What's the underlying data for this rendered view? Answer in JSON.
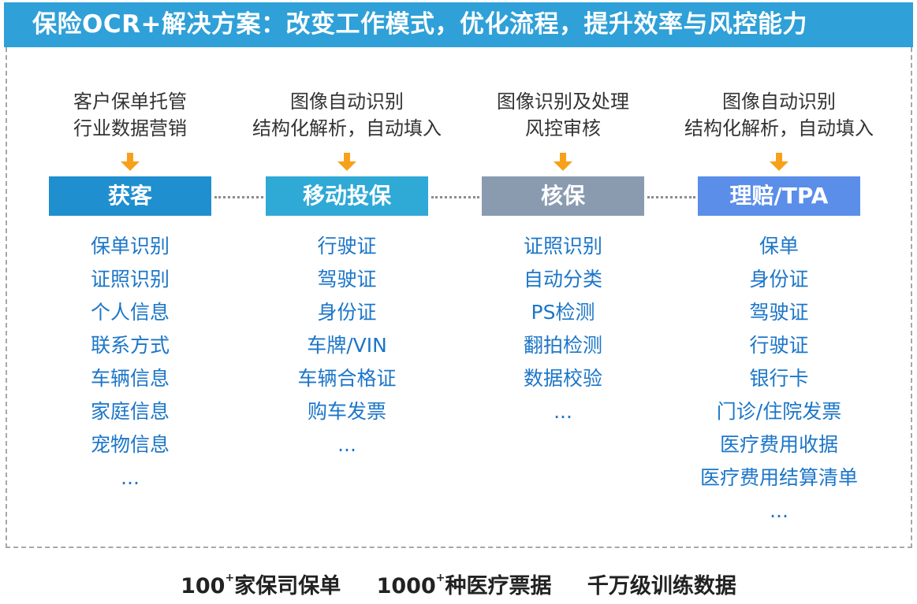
{
  "title": "保险OCR+解决方案：改变工作模式，优化流程，提升效率与风控能力",
  "colors": {
    "title_bg": "#2fa0d8",
    "stage_1": "#1f8fcf",
    "stage_2": "#2fa9d6",
    "stage_3": "#8a9bb0",
    "stage_4": "#5a8ee8",
    "arrow": "#f7a11a",
    "list_text": "#1c76c8"
  },
  "columns": [
    {
      "desc": [
        "客户保单托管",
        "行业数据营销"
      ],
      "stage": "获客",
      "items": [
        "保单识别",
        "证照识别",
        "个人信息",
        "联系方式",
        "车辆信息",
        "家庭信息",
        "宠物信息",
        "..."
      ]
    },
    {
      "desc": [
        "图像自动识别",
        "结构化解析，自动填入"
      ],
      "stage": "移动投保",
      "items": [
        "行驶证",
        "驾驶证",
        "身份证",
        "车牌/VIN",
        "车辆合格证",
        "购车发票",
        "..."
      ]
    },
    {
      "desc": [
        "图像识别及处理",
        "风控审核"
      ],
      "stage": "核保",
      "items": [
        "证照识别",
        "自动分类",
        "PS检测",
        "翻拍检测",
        "数据校验",
        "..."
      ]
    },
    {
      "desc": [
        "图像自动识别",
        "结构化解析，自动填入"
      ],
      "stage": "理赔/TPA",
      "items": [
        "保单",
        "身份证",
        "驾驶证",
        "行驶证",
        "银行卡",
        "门诊/住院发票",
        "医疗费用收据",
        "医疗费用结算清单",
        "..."
      ]
    }
  ],
  "footer": [
    {
      "num": "100",
      "sup": "+",
      "text": "家保司保单"
    },
    {
      "num": "1000",
      "sup": "+",
      "text": "种医疗票据"
    },
    {
      "num": "",
      "sup": "",
      "text": "千万级训练数据"
    }
  ]
}
